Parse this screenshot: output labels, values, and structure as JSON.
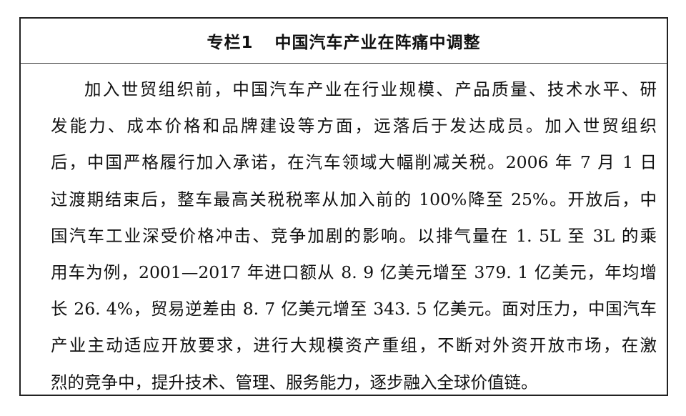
{
  "title": {
    "label": "专栏1",
    "text": "中国汽车产业在阵痛中调整"
  },
  "body_lines": [
    "加入世贸组织前，中国汽车产业在行业规模、产品质量、技术水平、研",
    "发能力、成本价格和品牌建设等方面，远落后于发达成员。加入世贸组织",
    "后，中国严格履行加入承诺，在汽车领域大幅削减关税。2006 年 7 月 1 日",
    "过渡期结束后，整车最高关税税率从加入前的 100%降至 25%。开放后，中",
    "国汽车工业深受价格冲击、竞争加剧的影响。以排气量在 1. 5L 至 3L 的乘",
    "用车为例，2001—2017 年进口额从 8. 9 亿美元增至 379. 1 亿美元，年均增",
    "长 26. 4%，贸易逆差由 8. 7 亿美元增至 343. 5 亿美元。面对压力，中国汽车",
    "产业主动适应开放要求，进行大规模资产重组，不断对外资开放市场，在激",
    "烈的竞争中，提升技术、管理、服务能力，逐步融入全球价值链。"
  ]
}
